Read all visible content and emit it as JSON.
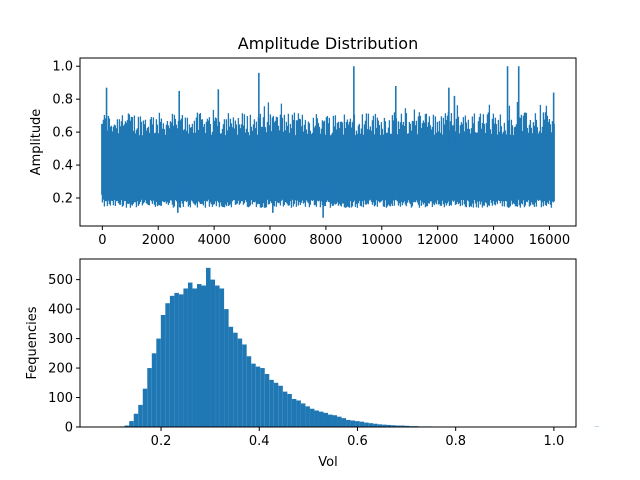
{
  "figure": {
    "title": "Amplitude Distribution"
  },
  "chart_data": [
    {
      "type": "line",
      "title": "Amplitude Distribution",
      "xlabel": "",
      "ylabel": "Amplitude",
      "xlim": [
        -800,
        16950
      ],
      "ylim": [
        0.03,
        1.05
      ],
      "xticks": [
        0,
        2000,
        4000,
        6000,
        8000,
        10000,
        12000,
        14000,
        16000
      ],
      "yticks": [
        0.2,
        0.4,
        0.6,
        0.8,
        1.0
      ],
      "xtick_labels": [
        "0",
        "2000",
        "4000",
        "6000",
        "8000",
        "10000",
        "12000",
        "14000",
        "16000"
      ],
      "ytick_labels": [
        "0.2",
        "0.4",
        "0.6",
        "0.8",
        "1.0"
      ],
      "color": "#1f77b4",
      "series_summary": {
        "n_points": 16150,
        "x_start": 0,
        "x_end": 16150,
        "typical_min": 0.15,
        "typical_max": 0.7,
        "mean": 0.37
      },
      "notable_peaks": [
        {
          "x": 150,
          "y": 0.87
        },
        {
          "x": 2750,
          "y": 0.85
        },
        {
          "x": 4150,
          "y": 0.86
        },
        {
          "x": 5600,
          "y": 0.96
        },
        {
          "x": 9000,
          "y": 1.0
        },
        {
          "x": 10500,
          "y": 0.88
        },
        {
          "x": 12400,
          "y": 0.87
        },
        {
          "x": 12600,
          "y": 0.82
        },
        {
          "x": 14500,
          "y": 1.0
        },
        {
          "x": 14900,
          "y": 1.0
        },
        {
          "x": 16150,
          "y": 0.84
        }
      ],
      "notable_troughs": [
        {
          "x": 7900,
          "y": 0.08
        },
        {
          "x": 6100,
          "y": 0.11
        },
        {
          "x": 2700,
          "y": 0.11
        }
      ],
      "grid": false
    },
    {
      "type": "bar",
      "subtype": "histogram",
      "title": "",
      "xlabel": "Vol",
      "ylabel": "Fequencies",
      "xlim": [
        0.035,
        1.045
      ],
      "ylim": [
        0,
        570
      ],
      "xticks": [
        0.2,
        0.4,
        0.6,
        0.8,
        1.0
      ],
      "yticks": [
        0,
        100,
        200,
        300,
        400,
        500
      ],
      "xtick_labels": [
        "0.2",
        "0.4",
        "0.6",
        "0.8",
        "1.0"
      ],
      "ytick_labels": [
        "0",
        "100",
        "200",
        "300",
        "400",
        "500"
      ],
      "color": "#1f77b4",
      "bin_start": 0.08,
      "bin_width": 0.0092,
      "bin_counts": [
        1,
        0,
        0,
        0,
        2,
        5,
        20,
        45,
        75,
        130,
        200,
        250,
        300,
        380,
        420,
        445,
        455,
        450,
        470,
        490,
        470,
        485,
        480,
        540,
        500,
        480,
        470,
        400,
        340,
        320,
        300,
        280,
        240,
        215,
        205,
        200,
        180,
        160,
        150,
        140,
        120,
        112,
        95,
        90,
        80,
        70,
        62,
        56,
        52,
        48,
        42,
        40,
        35,
        30,
        24,
        22,
        20,
        18,
        15,
        13,
        11,
        9,
        8,
        7,
        6,
        5,
        5,
        4,
        3,
        3,
        2,
        2,
        2,
        1,
        1,
        1,
        1,
        1,
        1,
        1,
        0,
        0,
        0,
        0,
        0,
        0,
        1,
        1,
        0,
        0,
        0,
        0,
        0,
        0,
        0,
        0,
        0,
        0,
        0,
        0,
        0,
        0,
        0,
        0,
        0,
        0,
        0,
        0,
        0,
        1
      ],
      "grid": false
    }
  ]
}
